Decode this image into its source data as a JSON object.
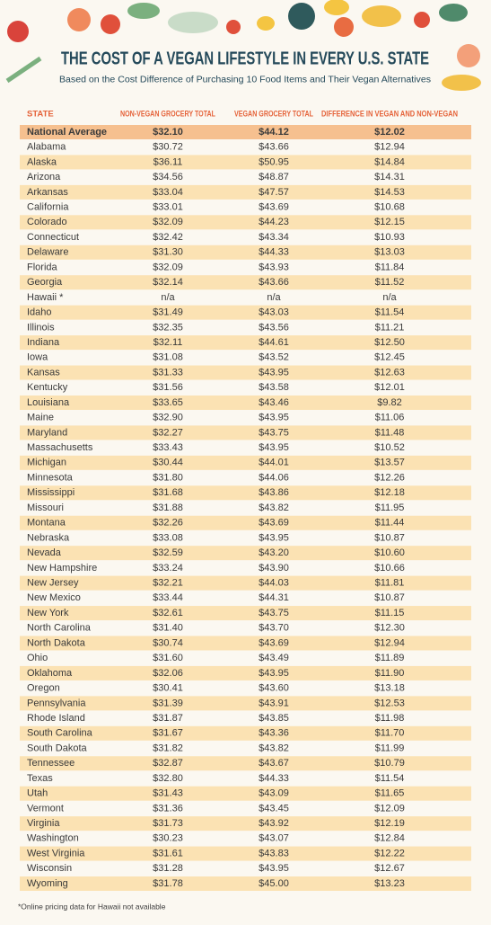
{
  "header": {
    "title": "THE COST OF A VEGAN LIFESTYLE IN EVERY U.S. STATE",
    "subtitle": "Based on the Cost Difference of Purchasing 10 Food Items and Their Vegan Alternatives"
  },
  "table": {
    "columns": [
      "STATE",
      "NON-VEGAN GROCERY TOTAL",
      "VEGAN GROCERY TOTAL",
      "DIFFERENCE IN VEGAN AND NON-VEGAN"
    ],
    "summary": [
      "National Average",
      "$32.10",
      "$44.12",
      "$12.02"
    ],
    "rows": [
      [
        "Alabama",
        "$30.72",
        "$43.66",
        "$12.94"
      ],
      [
        "Alaska",
        "$36.11",
        "$50.95",
        "$14.84"
      ],
      [
        "Arizona",
        "$34.56",
        "$48.87",
        "$14.31"
      ],
      [
        "Arkansas",
        "$33.04",
        "$47.57",
        "$14.53"
      ],
      [
        "California",
        "$33.01",
        "$43.69",
        "$10.68"
      ],
      [
        "Colorado",
        "$32.09",
        "$44.23",
        "$12.15"
      ],
      [
        "Connecticut",
        "$32.42",
        "$43.34",
        "$10.93"
      ],
      [
        "Delaware",
        "$31.30",
        "$44.33",
        "$13.03"
      ],
      [
        "Florida",
        "$32.09",
        "$43.93",
        "$11.84"
      ],
      [
        "Georgia",
        "$32.14",
        "$43.66",
        "$11.52"
      ],
      [
        "Hawaii *",
        "n/a",
        "n/a",
        "n/a"
      ],
      [
        "Idaho",
        "$31.49",
        "$43.03",
        "$11.54"
      ],
      [
        "Illinois",
        "$32.35",
        "$43.56",
        "$11.21"
      ],
      [
        "Indiana",
        "$32.11",
        "$44.61",
        "$12.50"
      ],
      [
        "Iowa",
        "$31.08",
        "$43.52",
        "$12.45"
      ],
      [
        "Kansas",
        "$31.33",
        "$43.95",
        "$12.63"
      ],
      [
        "Kentucky",
        "$31.56",
        "$43.58",
        "$12.01"
      ],
      [
        "Louisiana",
        "$33.65",
        "$43.46",
        "$9.82"
      ],
      [
        "Maine",
        "$32.90",
        "$43.95",
        "$11.06"
      ],
      [
        "Maryland",
        "$32.27",
        "$43.75",
        "$11.48"
      ],
      [
        "Massachusetts",
        "$33.43",
        "$43.95",
        "$10.52"
      ],
      [
        "Michigan",
        "$30.44",
        "$44.01",
        "$13.57"
      ],
      [
        "Minnesota",
        "$31.80",
        "$44.06",
        "$12.26"
      ],
      [
        "Mississippi",
        "$31.68",
        "$43.86",
        "$12.18"
      ],
      [
        "Missouri",
        "$31.88",
        "$43.82",
        "$11.95"
      ],
      [
        "Montana",
        "$32.26",
        "$43.69",
        "$11.44"
      ],
      [
        "Nebraska",
        "$33.08",
        "$43.95",
        "$10.87"
      ],
      [
        "Nevada",
        "$32.59",
        "$43.20",
        "$10.60"
      ],
      [
        "New Hampshire",
        "$33.24",
        "$43.90",
        "$10.66"
      ],
      [
        "New Jersey",
        "$32.21",
        "$44.03",
        "$11.81"
      ],
      [
        "New Mexico",
        "$33.44",
        "$44.31",
        "$10.87"
      ],
      [
        "New York",
        "$32.61",
        "$43.75",
        "$11.15"
      ],
      [
        "North Carolina",
        "$31.40",
        "$43.70",
        "$12.30"
      ],
      [
        "North Dakota",
        "$30.74",
        "$43.69",
        "$12.94"
      ],
      [
        "Ohio",
        "$31.60",
        "$43.49",
        "$11.89"
      ],
      [
        "Oklahoma",
        "$32.06",
        "$43.95",
        "$11.90"
      ],
      [
        "Oregon",
        "$30.41",
        "$43.60",
        "$13.18"
      ],
      [
        "Pennsylvania",
        "$31.39",
        "$43.91",
        "$12.53"
      ],
      [
        "Rhode Island",
        "$31.87",
        "$43.85",
        "$11.98"
      ],
      [
        "South Carolina",
        "$31.67",
        "$43.36",
        "$11.70"
      ],
      [
        "South Dakota",
        "$31.82",
        "$43.82",
        "$11.99"
      ],
      [
        "Tennessee",
        "$32.87",
        "$43.67",
        "$10.79"
      ],
      [
        "Texas",
        "$32.80",
        "$44.33",
        "$11.54"
      ],
      [
        "Utah",
        "$31.43",
        "$43.09",
        "$11.65"
      ],
      [
        "Vermont",
        "$31.36",
        "$43.45",
        "$12.09"
      ],
      [
        "Virginia",
        "$31.73",
        "$43.92",
        "$12.19"
      ],
      [
        "Washington",
        "$30.23",
        "$43.07",
        "$12.84"
      ],
      [
        "West Virginia",
        "$31.61",
        "$43.83",
        "$12.22"
      ],
      [
        "Wisconsin",
        "$31.28",
        "$43.95",
        "$12.67"
      ],
      [
        "Wyoming",
        "$31.78",
        "$45.00",
        "$13.23"
      ]
    ]
  },
  "footnote": "*Online pricing data for Hawaii not available"
}
